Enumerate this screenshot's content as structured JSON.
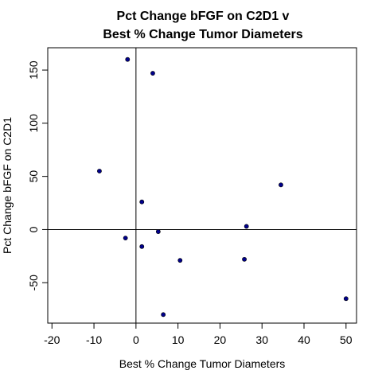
{
  "chart_data": {
    "type": "scatter",
    "title_lines": [
      "Pct Change bFGF on C2D1 v",
      "Best % Change Tumor Diameters"
    ],
    "xlabel": "Best % Change Tumor Diameters",
    "ylabel": "Pct Change bFGF on C2D1",
    "xlim": [
      -21,
      52.5
    ],
    "ylim": [
      -88,
      171
    ],
    "xticks": [
      -20,
      -10,
      0,
      10,
      20,
      30,
      40,
      50
    ],
    "xtick_labels": [
      "-20",
      "-10",
      "0",
      "10",
      "20",
      "30",
      "40",
      "50"
    ],
    "yticks": [
      -50,
      0,
      50,
      100,
      150
    ],
    "ytick_labels": [
      "-50",
      "0",
      "50",
      "100",
      "150"
    ],
    "reference_lines": {
      "x": 0,
      "y": 0
    },
    "grid": false,
    "legend": "none",
    "point_color": "#00008b",
    "points": [
      {
        "x": -2.0,
        "y": 160
      },
      {
        "x": 4.0,
        "y": 147
      },
      {
        "x": -8.7,
        "y": 55
      },
      {
        "x": 34.5,
        "y": 42
      },
      {
        "x": 1.4,
        "y": 26
      },
      {
        "x": 26.3,
        "y": 3
      },
      {
        "x": 5.3,
        "y": -2
      },
      {
        "x": -2.5,
        "y": -8
      },
      {
        "x": 1.4,
        "y": -16
      },
      {
        "x": 10.5,
        "y": -29
      },
      {
        "x": 25.8,
        "y": -28
      },
      {
        "x": 50.0,
        "y": -65
      },
      {
        "x": 6.5,
        "y": -80
      }
    ]
  }
}
